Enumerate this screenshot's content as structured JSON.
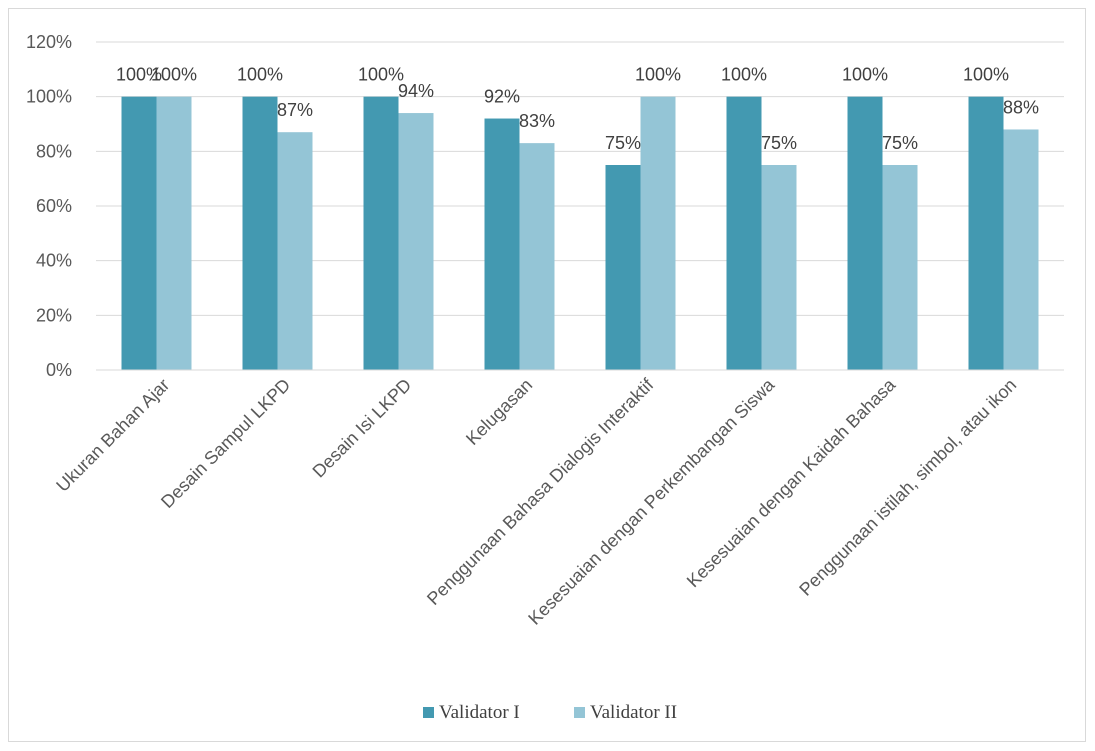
{
  "chart_data": {
    "type": "bar",
    "title": "",
    "xlabel": "",
    "ylabel": "",
    "ylim": [
      0,
      1.2
    ],
    "y_ticks": [
      {
        "value": 0,
        "label": "0%"
      },
      {
        "value": 0.2,
        "label": "20%"
      },
      {
        "value": 0.4,
        "label": "40%"
      },
      {
        "value": 0.6,
        "label": "60%"
      },
      {
        "value": 0.8,
        "label": "80%"
      },
      {
        "value": 1.0,
        "label": "100%"
      },
      {
        "value": 1.2,
        "label": "120%"
      }
    ],
    "grid": true,
    "legend": "bottom",
    "categories": [
      "Ukuran Bahan Ajar",
      "Desain Sampul LKPD",
      "Desain Isi LKPD",
      "Kelugasan",
      "Penggunaan Bahasa Dialogis Interaktif",
      "Kesesuaian dengan Perkembangan Siswa",
      "Kesesuaian dengan Kaidah Bahasa",
      "Penggunaan istilah, simbol, atau ikon"
    ],
    "series": [
      {
        "name": "Validator I",
        "color": "#4399b1",
        "values": [
          1.0,
          1.0,
          1.0,
          0.92,
          0.75,
          1.0,
          1.0,
          1.0
        ],
        "labels": [
          "100%",
          "100%",
          "100%",
          "92%",
          "75%",
          "100%",
          "100%",
          "100%"
        ]
      },
      {
        "name": "Validator II",
        "color": "#94c5d6",
        "values": [
          1.0,
          0.87,
          0.94,
          0.83,
          1.0,
          0.75,
          0.75,
          0.88
        ],
        "labels": [
          "100%",
          "87%",
          "94%",
          "83%",
          "100%",
          "75%",
          "75%",
          "88%"
        ]
      }
    ]
  }
}
